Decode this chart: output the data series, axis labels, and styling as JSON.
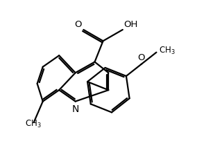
{
  "bg": "#ffffff",
  "lc": "black",
  "lw": 1.6,
  "fs": 8.5,
  "xlim": [
    -3.5,
    9.5
  ],
  "ylim": [
    -4.5,
    5.5
  ]
}
